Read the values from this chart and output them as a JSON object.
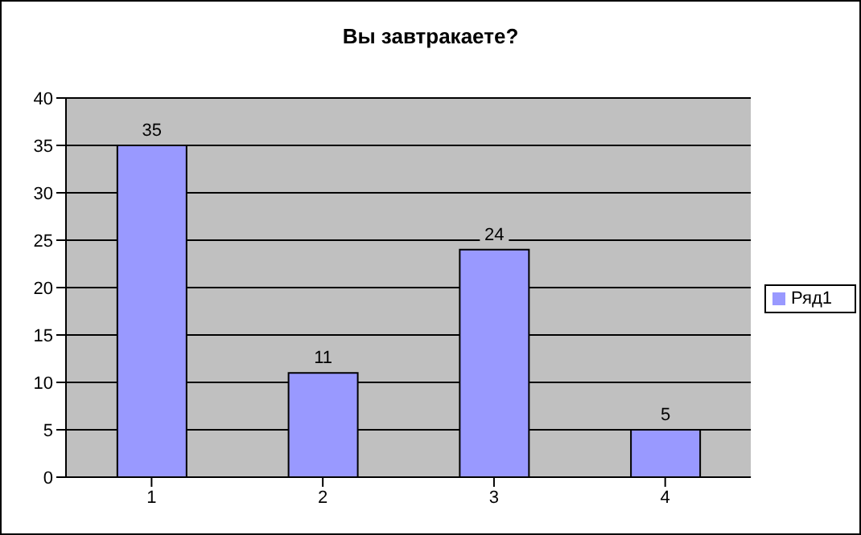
{
  "chart_data": {
    "type": "bar",
    "title": "Вы завтракаете?",
    "categories": [
      "1",
      "2",
      "3",
      "4"
    ],
    "series": [
      {
        "name": "Ряд1",
        "color": "#9999ff",
        "values": [
          35,
          11,
          24,
          5
        ]
      }
    ],
    "ylim": [
      0,
      40
    ],
    "yticks": [
      0,
      5,
      10,
      15,
      20,
      25,
      30,
      35,
      40
    ],
    "grid": "y",
    "legend": "right",
    "data_labels": true
  }
}
